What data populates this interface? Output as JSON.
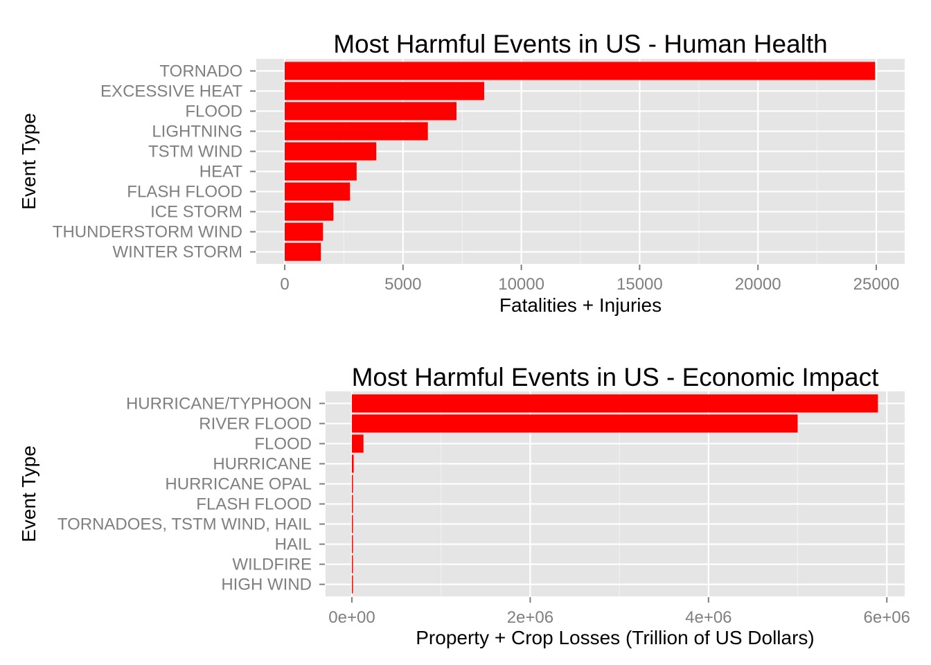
{
  "chart_data": [
    {
      "type": "bar",
      "orientation": "horizontal",
      "title": "Most Harmful Events in US - Human Health",
      "xlabel": "Fatalities + Injuries",
      "ylabel": "Event Type",
      "bar_color": "#ff0000",
      "panel_color": "#e5e5e5",
      "categories": [
        "TORNADO",
        "EXCESSIVE HEAT",
        "FLOOD",
        "LIGHTNING",
        "TSTM WIND",
        "HEAT",
        "FLASH FLOOD",
        "ICE STORM",
        "THUNDERSTORM WIND",
        "WINTER STORM"
      ],
      "values": [
        24950,
        8430,
        7260,
        6050,
        3870,
        3040,
        2760,
        2060,
        1620,
        1530
      ],
      "xlim": [
        -1200,
        26200
      ],
      "x_ticks": [
        0,
        5000,
        10000,
        15000,
        20000,
        25000
      ],
      "x_tick_labels": [
        "0",
        "5000",
        "10000",
        "15000",
        "20000",
        "25000"
      ],
      "grid": true
    },
    {
      "type": "bar",
      "orientation": "horizontal",
      "title": "Most Harmful Events in US - Economic Impact",
      "xlabel": "Property + Crop Losses (Trillion of US Dollars)",
      "ylabel": "Event Type",
      "bar_color": "#ff0000",
      "panel_color": "#e5e5e5",
      "categories": [
        "HURRICANE/TYPHOON",
        "RIVER FLOOD",
        "FLOOD",
        "HURRICANE",
        "HURRICANE OPAL",
        "FLASH FLOOD",
        "TORNADOES, TSTM WIND, HAIL",
        "HAIL",
        "WILDFIRE",
        "HIGH WIND"
      ],
      "values": [
        5900000,
        5000000,
        130000,
        20000,
        12000,
        10000,
        8000,
        7000,
        6000,
        5000
      ],
      "xlim": [
        -295000,
        6200000
      ],
      "x_ticks": [
        0,
        2000000,
        4000000,
        6000000
      ],
      "x_tick_labels": [
        "0e+00",
        "2e+06",
        "4e+06",
        "6e+06"
      ],
      "grid": true
    }
  ]
}
